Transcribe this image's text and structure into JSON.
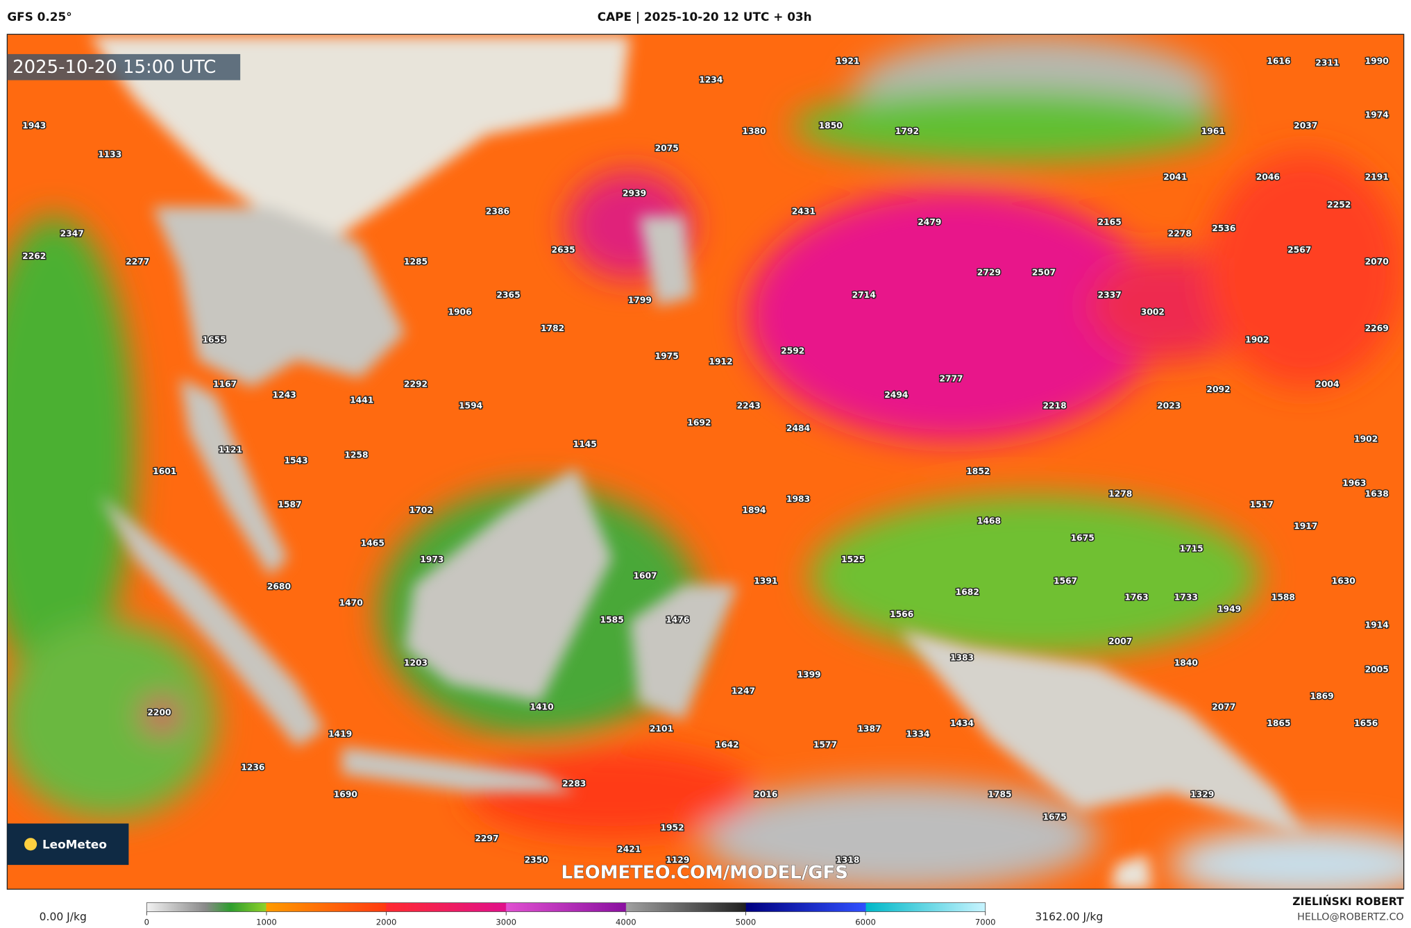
{
  "header": {
    "model": "GFS 0.25°",
    "title": "CAPE | 2025-10-20 12 UTC + 03h"
  },
  "timestamp": "2025-10-20 15:00 UTC",
  "logo": "LeoMeteo",
  "watermark": "LEOMETEO.COM/MODEL/GFS",
  "legend": {
    "min_label": "0.00 J/kg",
    "max_label": "3162.00 J/kg",
    "ticks": [
      0,
      1000,
      2000,
      3000,
      4000,
      5000,
      6000,
      7000
    ]
  },
  "credits": {
    "author": "ZIELIŃSKI ROBERT",
    "email": "HELLO@ROBERTZ.CO"
  },
  "map_labels": [
    1921,
    1234,
    1616,
    2311,
    1990,
    1943,
    1974,
    1133,
    1380,
    1850,
    1792,
    1961,
    2037,
    2075,
    2041,
    2046,
    2191,
    2939,
    2386,
    2431,
    2479,
    2165,
    2278,
    2536,
    2252,
    2347,
    2262,
    2277,
    1285,
    2635,
    2567,
    2070,
    2729,
    2507,
    2365,
    2714,
    2337,
    1799,
    1906,
    3002,
    1782,
    2269,
    1655,
    1902,
    2592,
    1975,
    1912,
    1167,
    2292,
    2777,
    2004,
    1243,
    2494,
    2092,
    1441,
    1594,
    2243,
    2218,
    2023,
    1692,
    2484,
    1145,
    1902,
    1121,
    1258,
    1543,
    1601,
    1852,
    1983,
    1278,
    1963,
    1638,
    1587,
    1702,
    1894,
    1517,
    1468,
    1917,
    1465,
    1675,
    1715,
    1973,
    1525,
    1607,
    1391,
    1567,
    1630,
    2680,
    1682,
    1763,
    1733,
    1588,
    1470,
    1949,
    1566,
    1585,
    1476,
    1914,
    2007,
    1383,
    1203,
    1840,
    2005,
    1399,
    1247,
    1869,
    1410,
    2200,
    2077,
    1656,
    2101,
    1387,
    1334,
    1434,
    1865,
    1419,
    1642,
    1577,
    1236,
    2283,
    2016,
    1690,
    1785,
    1329,
    1675,
    1952,
    2297,
    2421,
    1129,
    2350,
    1318
  ]
}
